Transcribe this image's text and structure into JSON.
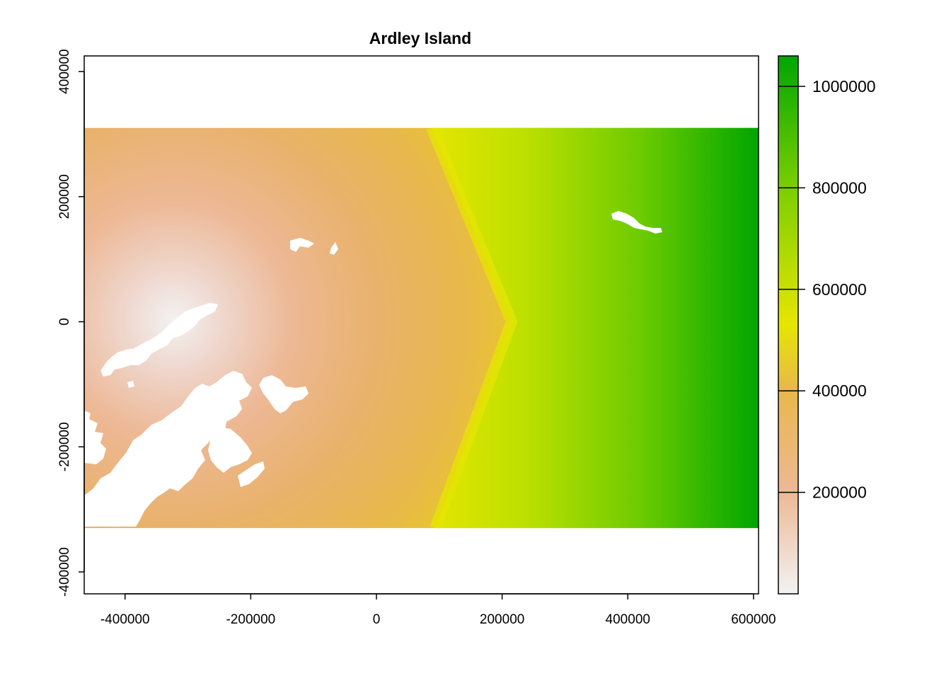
{
  "chart_data": {
    "type": "heatmap",
    "title": "Ardley Island",
    "xlabel": "",
    "ylabel": "",
    "xlim": [
      -465000,
      608000
    ],
    "ylim": [
      -435000,
      425000
    ],
    "xticks": [
      -400000,
      -200000,
      0,
      200000,
      400000,
      600000
    ],
    "xtick_labels": [
      "-400000",
      "-200000",
      "0",
      "200000",
      "400000",
      "600000"
    ],
    "yticks": [
      -400000,
      -200000,
      0,
      200000,
      400000
    ],
    "ytick_labels": [
      "-400000",
      "-200000",
      "0",
      "200000",
      "400000"
    ],
    "raster_extent": {
      "xmin": -465000,
      "xmax": 608000,
      "ymin": -330000,
      "ymax": 310000
    },
    "value_range": [
      0,
      1060000
    ],
    "min_location": {
      "x": -320000,
      "y": 0
    },
    "ridge_location": {
      "x": 215000,
      "y": 0
    },
    "grid": false,
    "legend": {
      "type": "colorbar",
      "position": "right",
      "ticks": [
        200000,
        400000,
        600000,
        800000,
        1000000
      ],
      "tick_labels": [
        "200000",
        "400000",
        "600000",
        "800000",
        "1000000"
      ],
      "colors": [
        {
          "value": 0,
          "color": "#f2f2f2"
        },
        {
          "value": 200000,
          "color": "#edb895"
        },
        {
          "value": 400000,
          "color": "#e8b84b"
        },
        {
          "value": 530000,
          "color": "#e6e600"
        },
        {
          "value": 800000,
          "color": "#7dcf00"
        },
        {
          "value": 1060000,
          "color": "#00a600"
        }
      ]
    },
    "masked_areas": "white land polygons (islands and peninsula, no data)"
  }
}
